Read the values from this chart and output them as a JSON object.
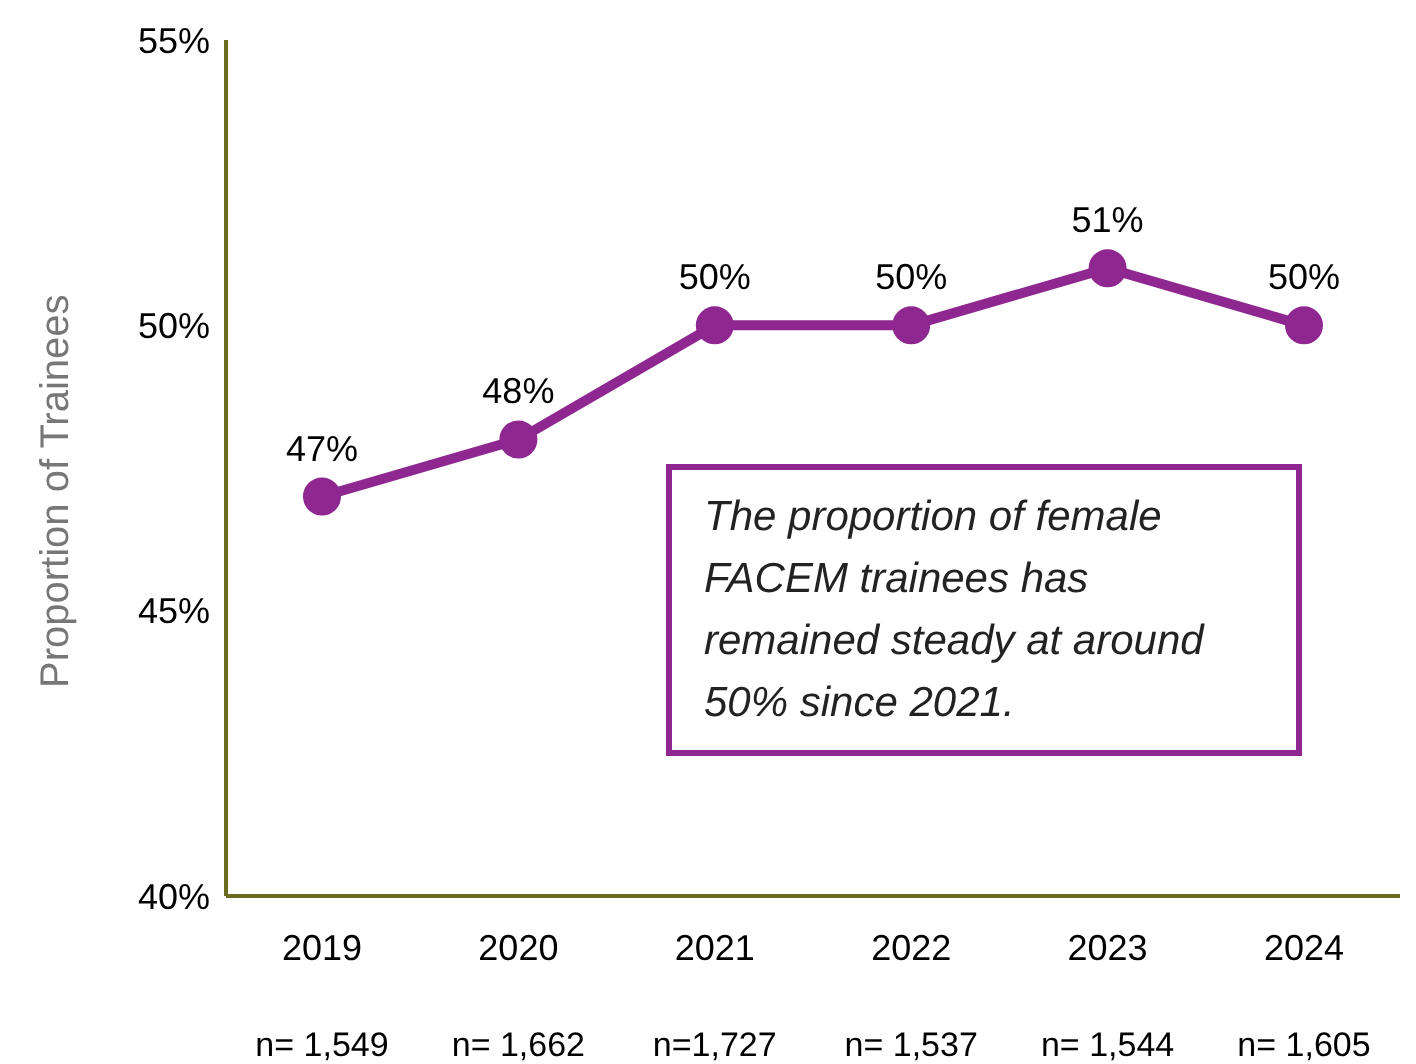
{
  "chart_data": {
    "type": "line",
    "ylabel": "Proportion of Trainees",
    "categories": [
      "2019",
      "2020",
      "2021",
      "2022",
      "2023",
      "2024"
    ],
    "values": [
      47,
      48,
      50,
      50,
      51,
      50
    ],
    "color": "#8e2790",
    "ylim": [
      40,
      55
    ],
    "yticks": [
      {
        "value": 40,
        "label": "40%"
      },
      {
        "value": 45,
        "label": "45%"
      },
      {
        "value": 50,
        "label": "50%"
      },
      {
        "value": 55,
        "label": "55%"
      }
    ],
    "value_labels": [
      "47%",
      "48%",
      "50%",
      "50%",
      "51%",
      "50%"
    ],
    "grid": false,
    "legend": false,
    "marker": "circle",
    "line_style": "solid",
    "annotations": [
      "n= 1,549",
      "n= 1,662",
      "n=1,727",
      "n= 1,537",
      "n= 1,544",
      "n= 1,605",
      "The proportion of female FACEM trainees has remained steady at around 50% since 2021."
    ]
  }
}
